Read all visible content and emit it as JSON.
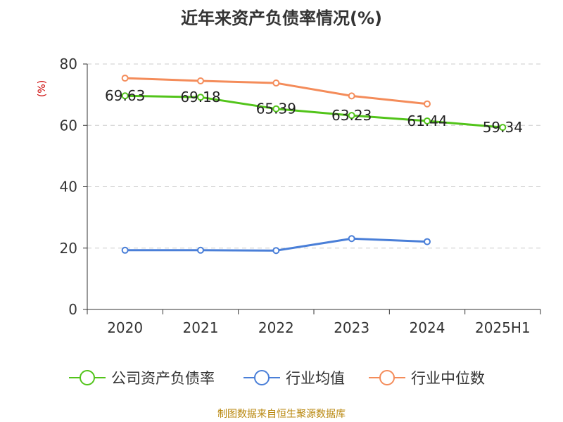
{
  "chart_data": {
    "type": "line",
    "title": "近年来资产负债率情况(%)",
    "ylabel": "(%)",
    "xlabel": "",
    "categories": [
      "2020",
      "2021",
      "2022",
      "2023",
      "2024",
      "2025H1"
    ],
    "ylim": [
      0,
      80
    ],
    "yticks": [
      0,
      20,
      40,
      60,
      80
    ],
    "grid": true,
    "legend_position": "bottom",
    "series": [
      {
        "name": "公司资产负债率",
        "color": "#52c41a",
        "values": [
          69.63,
          69.18,
          65.39,
          63.23,
          61.44,
          59.34
        ],
        "show_labels": true
      },
      {
        "name": "行业均值",
        "color": "#4a7fd8",
        "values": [
          19.3,
          19.3,
          19.2,
          23.1,
          22.1,
          null
        ],
        "show_labels": false
      },
      {
        "name": "行业中位数",
        "color": "#f48c5a",
        "values": [
          75.4,
          74.5,
          73.8,
          69.6,
          67.0,
          null
        ],
        "show_labels": false
      }
    ]
  },
  "source": "制图数据来自恒生聚源数据库"
}
